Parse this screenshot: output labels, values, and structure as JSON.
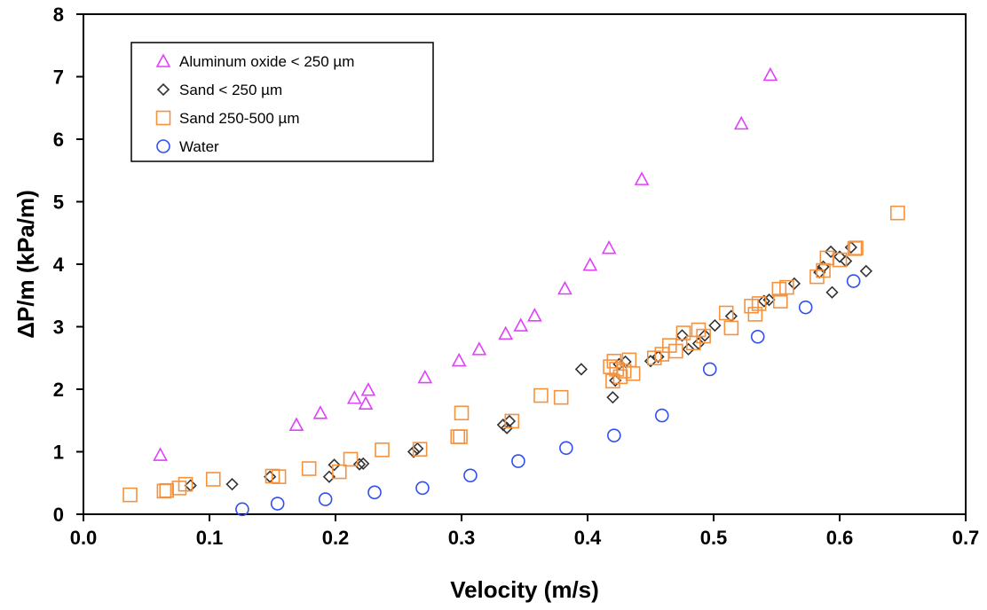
{
  "chart_data": {
    "type": "scatter",
    "title": "",
    "xlabel": "Velocity (m/s)",
    "ylabel": "ΔP/m (kPa/m)",
    "xlim": [
      0.0,
      0.7
    ],
    "ylim": [
      0,
      8
    ],
    "x_ticks": [
      "0.0",
      "0.1",
      "0.2",
      "0.3",
      "0.4",
      "0.5",
      "0.6",
      "0.7"
    ],
    "y_ticks": [
      "0",
      "1",
      "2",
      "3",
      "4",
      "5",
      "6",
      "7",
      "8"
    ],
    "grid": false,
    "legend_position": "top-left",
    "series": [
      {
        "name": "Aluminum oxide < 250 µm",
        "marker": "triangle",
        "color": "#e040fb",
        "points": [
          [
            0.061,
            0.95
          ],
          [
            0.169,
            1.43
          ],
          [
            0.188,
            1.62
          ],
          [
            0.215,
            1.86
          ],
          [
            0.224,
            1.77
          ],
          [
            0.226,
            1.99
          ],
          [
            0.271,
            2.19
          ],
          [
            0.298,
            2.46
          ],
          [
            0.314,
            2.64
          ],
          [
            0.335,
            2.89
          ],
          [
            0.347,
            3.02
          ],
          [
            0.358,
            3.18
          ],
          [
            0.382,
            3.61
          ],
          [
            0.402,
            3.99
          ],
          [
            0.417,
            4.26
          ],
          [
            0.443,
            5.36
          ],
          [
            0.522,
            6.25
          ],
          [
            0.545,
            7.03
          ]
        ]
      },
      {
        "name": "Sand < 250 µm",
        "marker": "diamond",
        "color": "#333333",
        "points": [
          [
            0.085,
            0.46
          ],
          [
            0.118,
            0.48
          ],
          [
            0.148,
            0.6
          ],
          [
            0.195,
            0.6
          ],
          [
            0.199,
            0.79
          ],
          [
            0.219,
            0.8
          ],
          [
            0.222,
            0.81
          ],
          [
            0.262,
            1.0
          ],
          [
            0.265,
            1.05
          ],
          [
            0.333,
            1.43
          ],
          [
            0.336,
            1.38
          ],
          [
            0.338,
            1.49
          ],
          [
            0.395,
            2.32
          ],
          [
            0.42,
            1.87
          ],
          [
            0.422,
            2.14
          ],
          [
            0.425,
            2.4
          ],
          [
            0.43,
            2.44
          ],
          [
            0.45,
            2.45
          ],
          [
            0.456,
            2.52
          ],
          [
            0.475,
            2.86
          ],
          [
            0.48,
            2.64
          ],
          [
            0.488,
            2.73
          ],
          [
            0.493,
            2.86
          ],
          [
            0.501,
            3.02
          ],
          [
            0.514,
            3.17
          ],
          [
            0.54,
            3.41
          ],
          [
            0.544,
            3.43
          ],
          [
            0.564,
            3.69
          ],
          [
            0.584,
            3.87
          ],
          [
            0.587,
            3.96
          ],
          [
            0.593,
            4.2
          ],
          [
            0.594,
            3.55
          ],
          [
            0.6,
            4.12
          ],
          [
            0.605,
            4.05
          ],
          [
            0.609,
            4.27
          ],
          [
            0.621,
            3.89
          ]
        ]
      },
      {
        "name": "Sand 250-500 µm",
        "marker": "square",
        "color": "#f5923e",
        "points": [
          [
            0.037,
            0.31
          ],
          [
            0.064,
            0.37
          ],
          [
            0.066,
            0.38
          ],
          [
            0.076,
            0.42
          ],
          [
            0.081,
            0.48
          ],
          [
            0.103,
            0.56
          ],
          [
            0.15,
            0.61
          ],
          [
            0.155,
            0.6
          ],
          [
            0.179,
            0.73
          ],
          [
            0.203,
            0.68
          ],
          [
            0.212,
            0.88
          ],
          [
            0.237,
            1.03
          ],
          [
            0.267,
            1.04
          ],
          [
            0.297,
            1.24
          ],
          [
            0.299,
            1.24
          ],
          [
            0.3,
            1.62
          ],
          [
            0.34,
            1.49
          ],
          [
            0.363,
            1.9
          ],
          [
            0.379,
            1.87
          ],
          [
            0.418,
            2.36
          ],
          [
            0.42,
            2.13
          ],
          [
            0.421,
            2.45
          ],
          [
            0.423,
            2.32
          ],
          [
            0.426,
            2.2
          ],
          [
            0.429,
            2.29
          ],
          [
            0.433,
            2.47
          ],
          [
            0.436,
            2.25
          ],
          [
            0.453,
            2.5
          ],
          [
            0.459,
            2.56
          ],
          [
            0.465,
            2.7
          ],
          [
            0.47,
            2.61
          ],
          [
            0.476,
            2.9
          ],
          [
            0.484,
            2.74
          ],
          [
            0.488,
            2.95
          ],
          [
            0.492,
            2.85
          ],
          [
            0.51,
            3.22
          ],
          [
            0.514,
            2.98
          ],
          [
            0.53,
            3.33
          ],
          [
            0.533,
            3.2
          ],
          [
            0.536,
            3.37
          ],
          [
            0.552,
            3.6
          ],
          [
            0.553,
            3.41
          ],
          [
            0.558,
            3.63
          ],
          [
            0.582,
            3.8
          ],
          [
            0.587,
            3.9
          ],
          [
            0.59,
            4.1
          ],
          [
            0.6,
            4.07
          ],
          [
            0.612,
            4.25
          ],
          [
            0.613,
            4.26
          ],
          [
            0.646,
            4.82
          ]
        ]
      },
      {
        "name": "Water",
        "marker": "circle",
        "color": "#2f4ff0",
        "points": [
          [
            0.126,
            0.08
          ],
          [
            0.154,
            0.17
          ],
          [
            0.192,
            0.24
          ],
          [
            0.231,
            0.35
          ],
          [
            0.269,
            0.42
          ],
          [
            0.307,
            0.62
          ],
          [
            0.345,
            0.85
          ],
          [
            0.383,
            1.06
          ],
          [
            0.421,
            1.26
          ],
          [
            0.459,
            1.58
          ],
          [
            0.497,
            2.32
          ],
          [
            0.535,
            2.84
          ],
          [
            0.573,
            3.31
          ],
          [
            0.611,
            3.73
          ]
        ]
      }
    ]
  }
}
